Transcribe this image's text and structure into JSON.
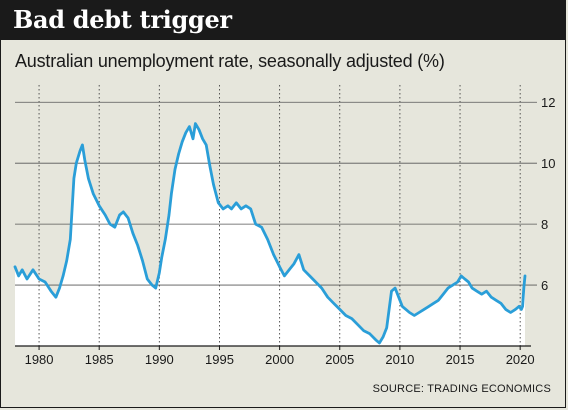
{
  "title": "Bad debt trigger",
  "subtitle": "Australian unemployment rate, seasonally adjusted (%)",
  "source": "SOURCE: TRADING ECONOMICS",
  "colors": {
    "line": "#2a9ed8",
    "header_bg": "#1a1a1a",
    "background": "#e6e6dc",
    "plot_bg": "#ffffff"
  },
  "chart_data": {
    "type": "line",
    "xlim": [
      1978.0,
      2020.9
    ],
    "ylim": [
      4.0,
      12.5
    ],
    "x_ticks": [
      1980,
      1985,
      1990,
      1995,
      2000,
      2005,
      2010,
      2015,
      2020
    ],
    "x_tick_labels": [
      "1980",
      "1985",
      "1990",
      "1995",
      "2000",
      "2005",
      "2010",
      "2015",
      "2020"
    ],
    "y_ticks": [
      6,
      8,
      10,
      12
    ],
    "y_tick_labels": [
      "6",
      "8",
      "10",
      "12"
    ],
    "grid": "horizontal and vertical dotted",
    "series": [
      {
        "x": [
          1978.0,
          1978.3,
          1978.6,
          1979.0,
          1979.5,
          1980.0,
          1980.5,
          1981.0,
          1981.4,
          1981.7,
          1982.0,
          1982.3,
          1982.6,
          1982.9,
          1983.1,
          1983.4,
          1983.6,
          1983.8,
          1984.1,
          1984.5,
          1985.0,
          1985.5,
          1985.9,
          1986.3,
          1986.7,
          1987.0,
          1987.4,
          1987.8,
          1988.2,
          1988.6,
          1989.0,
          1989.4,
          1989.7,
          1990.0,
          1990.2,
          1990.5,
          1990.8,
          1991.0,
          1991.3,
          1991.6,
          1991.9,
          1992.2,
          1992.5,
          1992.8,
          1993.0,
          1993.3,
          1993.6,
          1993.9,
          1994.2,
          1994.5,
          1994.9,
          1995.3,
          1995.7,
          1996.0,
          1996.4,
          1996.8,
          1997.2,
          1997.6,
          1998.0,
          1998.5,
          1999.0,
          1999.5,
          2000.0,
          2000.4,
          2000.8,
          2001.2,
          2001.6,
          2002.0,
          2002.5,
          2003.0,
          2003.5,
          2004.0,
          2004.5,
          2005.0,
          2005.5,
          2006.0,
          2006.5,
          2007.0,
          2007.5,
          2008.0,
          2008.3,
          2008.6,
          2008.9,
          2009.1,
          2009.3,
          2009.6,
          2009.9,
          2010.2,
          2010.5,
          2010.8,
          2011.2,
          2011.6,
          2012.0,
          2012.4,
          2012.8,
          2013.2,
          2013.6,
          2014.0,
          2014.4,
          2014.8,
          2015.1,
          2015.4,
          2015.7,
          2016.0,
          2016.4,
          2016.8,
          2017.2,
          2017.6,
          2018.0,
          2018.4,
          2018.8,
          2019.2,
          2019.6,
          2019.9,
          2020.1,
          2020.2,
          2020.3,
          2020.4
        ],
        "values": [
          6.6,
          6.3,
          6.5,
          6.2,
          6.5,
          6.2,
          6.1,
          5.8,
          5.6,
          5.9,
          6.3,
          6.8,
          7.5,
          9.5,
          10.0,
          10.4,
          10.6,
          10.1,
          9.5,
          9.0,
          8.6,
          8.3,
          8.0,
          7.9,
          8.3,
          8.4,
          8.2,
          7.7,
          7.3,
          6.8,
          6.2,
          6.0,
          5.9,
          6.4,
          6.9,
          7.5,
          8.3,
          9.0,
          9.8,
          10.3,
          10.7,
          11.0,
          11.2,
          10.8,
          11.3,
          11.1,
          10.8,
          10.6,
          9.9,
          9.3,
          8.7,
          8.5,
          8.6,
          8.5,
          8.7,
          8.5,
          8.6,
          8.5,
          8.0,
          7.9,
          7.5,
          7.0,
          6.6,
          6.3,
          6.5,
          6.7,
          7.0,
          6.5,
          6.3,
          6.1,
          5.9,
          5.6,
          5.4,
          5.2,
          5.0,
          4.9,
          4.7,
          4.5,
          4.4,
          4.2,
          4.1,
          4.3,
          4.6,
          5.2,
          5.8,
          5.9,
          5.6,
          5.3,
          5.2,
          5.1,
          5.0,
          5.1,
          5.2,
          5.3,
          5.4,
          5.5,
          5.7,
          5.9,
          6.0,
          6.1,
          6.3,
          6.2,
          6.1,
          5.9,
          5.8,
          5.7,
          5.8,
          5.6,
          5.5,
          5.4,
          5.2,
          5.1,
          5.2,
          5.3,
          5.2,
          5.3,
          5.9,
          6.3
        ]
      }
    ]
  }
}
